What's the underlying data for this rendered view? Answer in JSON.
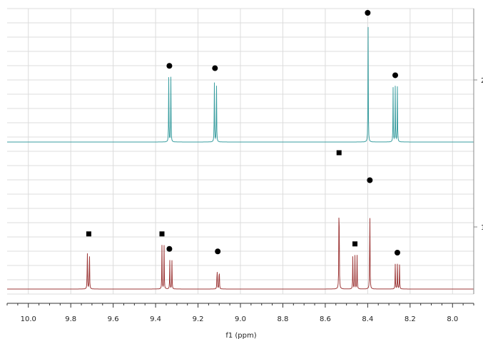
{
  "chart_data": {
    "type": "line",
    "xlabel": "f1 (ppm)",
    "x_reversed": true,
    "xlim": [
      10.1,
      7.9
    ],
    "x_ticks": [
      10.0,
      9.8,
      9.6,
      9.4,
      9.2,
      9.0,
      8.8,
      8.6,
      8.4,
      8.2,
      8.0
    ],
    "x_tick_labels": [
      "10.0",
      "9.8",
      "9.6",
      "9.4",
      "9.2",
      "9.0",
      "8.8",
      "8.6",
      "8.4",
      "8.2",
      "8.0"
    ],
    "grid": true,
    "series": [
      {
        "name": "2",
        "color": "#3a9ea0",
        "peaks": [
          {
            "center": 9.333,
            "height": 0.55,
            "lines": [
              -0.005,
              0.005
            ]
          },
          {
            "center": 9.118,
            "height": 0.53,
            "lines": [
              -0.005,
              0.005
            ]
          },
          {
            "center": 8.398,
            "height": 1.0,
            "lines": [
              0
            ]
          },
          {
            "center": 8.27,
            "height": 0.47,
            "lines": [
              -0.01,
              0,
              0.01
            ]
          }
        ],
        "markers": [
          {
            "x": 9.335,
            "symbol": "circle"
          },
          {
            "x": 9.12,
            "symbol": "circle"
          },
          {
            "x": 8.4,
            "symbol": "circle"
          },
          {
            "x": 8.27,
            "symbol": "circle"
          }
        ]
      },
      {
        "name": "1",
        "color": "#9e3a3a",
        "peaks": [
          {
            "center": 9.717,
            "height": 0.35,
            "lines": [
              -0.005,
              0.005
            ]
          },
          {
            "center": 9.365,
            "height": 0.35,
            "lines": [
              -0.005,
              0.005
            ]
          },
          {
            "center": 9.328,
            "height": 0.23,
            "lines": [
              -0.005,
              0.005
            ]
          },
          {
            "center": 9.105,
            "height": 0.21,
            "lines": [
              -0.005,
              0.005
            ]
          },
          {
            "center": 8.535,
            "height": 1.0,
            "lines": [
              0
            ]
          },
          {
            "center": 8.46,
            "height": 0.27,
            "lines": [
              -0.01,
              0,
              0.01
            ]
          },
          {
            "center": 8.39,
            "height": 0.78,
            "lines": [
              0
            ]
          },
          {
            "center": 8.26,
            "height": 0.2,
            "lines": [
              -0.01,
              0,
              0.01
            ]
          }
        ],
        "markers": [
          {
            "x": 9.715,
            "symbol": "square"
          },
          {
            "x": 9.37,
            "symbol": "square"
          },
          {
            "x": 9.335,
            "symbol": "circle"
          },
          {
            "x": 9.107,
            "symbol": "circle"
          },
          {
            "x": 8.535,
            "symbol": "square"
          },
          {
            "x": 8.46,
            "symbol": "square"
          },
          {
            "x": 8.39,
            "symbol": "circle"
          },
          {
            "x": 8.26,
            "symbol": "circle"
          }
        ]
      }
    ]
  }
}
